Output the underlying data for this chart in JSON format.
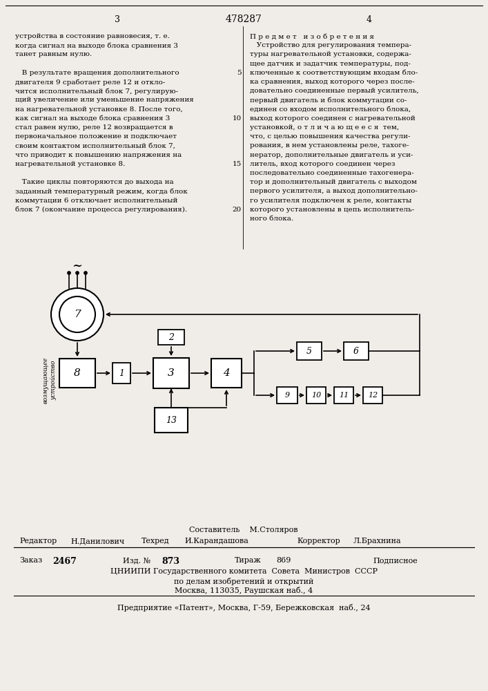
{
  "page_number_left": "3",
  "page_number_center": "478287",
  "page_number_right": "4",
  "left_text": [
    "устройства в состояние равновесия, т. е.",
    "когда сигнал на выходе блока сравнения 3",
    "танет равным нулю.",
    "",
    "   В результате вращения дополнительного",
    "двигателя 9 сработает реле 12 и откло-",
    "чится исполнительный блок 7, регулирую-",
    "щий увеличение или уменьшение напряжения",
    "на нагревательной установке 8. После того,",
    "как сигнал на выходе блока сравнения 3",
    "стал равен нулю, реле 12 возвращается в",
    "первоначальное положение и подключает",
    "своим контактом исполнительный блок 7,",
    "что приводит к повышению напряжения на",
    "нагревательной установке 8.",
    "",
    "   Такие циклы повторяются до выхода на",
    "заданный температурный режим, когда блок",
    "коммутации 6 отключает исполнительный",
    "блок 7 (окончание процесса регулирования)."
  ],
  "right_text_title": "П р е д м е т   и з о б р е т е н и я",
  "right_text": [
    "   Устройство для регулирования темпера-",
    "туры нагревательной установки, содержа-",
    "щее датчик и задатчик температуры, под-",
    "ключенные к соответствующим входам бло-",
    "ка сравнения, выход которого через после-",
    "довательно соединенные первый усилитель,",
    "первый двигатель и блок коммутации со-",
    "единен со входом исполнительного блока,",
    "выход которого соединен с нагревательной",
    "установкой, о т л и ч а ю щ е е с я  тем,",
    "что, с целью повышения качества регули-",
    "рования, в нем установлены реле, тахоге-",
    "нератор, дополнительные двигатель и уси-",
    "литель, вход которого соединен через",
    "последовательно соединенные тахогенера-",
    "тор и дополнительный двигатель с выходом",
    "первого усилителя, а выход дополнительно-",
    "го усилителя подключен к реле, контакты",
    "которого установлены в цепь исполнитель-",
    "ного блока."
  ],
  "footer_line1": "Составитель    М.Столяров",
  "footer_line2_parts": [
    "Редактор",
    "Н.Данилович",
    "Техред",
    "И.Карандашова",
    "Корректор",
    "Л.Брахнина"
  ],
  "footer_line3_parts": [
    "Заказ",
    "2467",
    "Изд. №",
    "873",
    "Тираж",
    "869",
    "Подписное"
  ],
  "footer_line4": "ЦНИИПИ Государственного комитета  Совета  Министров  СССР",
  "footer_line5": "по делам изобретений и открытий",
  "footer_line6": "Москва, 113035, Раушская наб., 4",
  "footer_line7": "Предприятие «Патент», Москва, Г-59, Бережковская  наб., 24",
  "bg_color": "#f0ede8"
}
